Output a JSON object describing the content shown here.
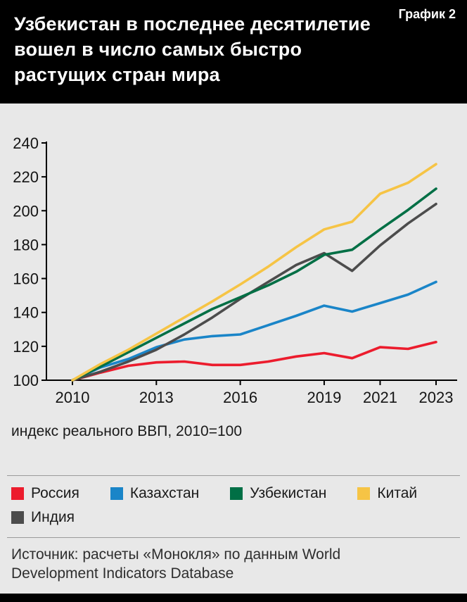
{
  "header": {
    "title": "Узбекистан в последнее десятилетие вошел в число самых быстро растущих стран мира",
    "badge": "График 2"
  },
  "chart_data": {
    "type": "line",
    "title": "",
    "x": [
      2010,
      2011,
      2012,
      2013,
      2014,
      2015,
      2016,
      2017,
      2018,
      2019,
      2020,
      2021,
      2022,
      2023
    ],
    "series": [
      {
        "id": "russia",
        "name": "Россия",
        "color": "#ec1c2d",
        "values": [
          100,
          104.5,
          108.5,
          110.5,
          111,
          109,
          109,
          111,
          114,
          116,
          113,
          119.5,
          118.5,
          122.5
        ]
      },
      {
        "id": "kazakhstan",
        "name": "Казахстан",
        "color": "#1a85c8",
        "values": [
          100,
          107.5,
          112.5,
          119.5,
          124,
          126,
          127,
          132.5,
          138,
          144,
          140.5,
          145.5,
          150.5,
          158
        ]
      },
      {
        "id": "uzbekistan",
        "name": "Узбекистан",
        "color": "#006f45",
        "values": [
          100,
          108,
          116.5,
          125,
          133.5,
          142,
          149,
          156,
          164,
          174,
          177,
          189,
          200.5,
          213
        ]
      },
      {
        "id": "china",
        "name": "Китай",
        "color": "#f6c445",
        "values": [
          100,
          109.5,
          118,
          127.5,
          137,
          146.5,
          156.5,
          167,
          178.5,
          189,
          193.5,
          210,
          216.5,
          227.5
        ]
      },
      {
        "id": "india",
        "name": "Индия",
        "color": "#4c4c4c",
        "values": [
          100,
          105,
          111,
          118,
          127,
          137,
          148,
          158,
          168,
          175,
          164.5,
          179.5,
          192.5,
          204
        ]
      }
    ],
    "draw_order": [
      0,
      1,
      4,
      2,
      3
    ],
    "ylim": [
      100,
      240
    ],
    "yticks": [
      100,
      120,
      140,
      160,
      180,
      200,
      220,
      240
    ],
    "xtick_labels": [
      2010,
      2013,
      2016,
      2019,
      2021,
      2023
    ],
    "caption": "индекс реального ВВП, 2010=100",
    "grid": false,
    "legend_position": "bottom"
  },
  "source": "Источник: расчеты «Монокля» по данным World Development Indicators Database"
}
